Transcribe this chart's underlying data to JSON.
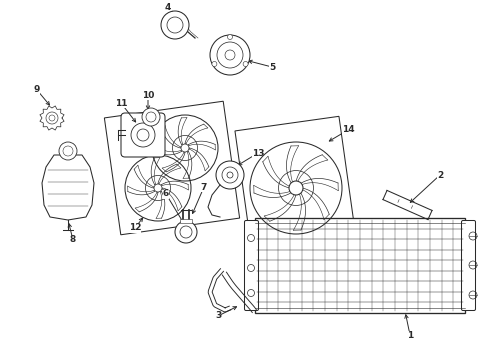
{
  "bg_color": "#ffffff",
  "line_color": "#2a2a2a",
  "figsize": [
    4.9,
    3.6
  ],
  "dpi": 100,
  "lw": 0.75,
  "label_fs": 6.5
}
